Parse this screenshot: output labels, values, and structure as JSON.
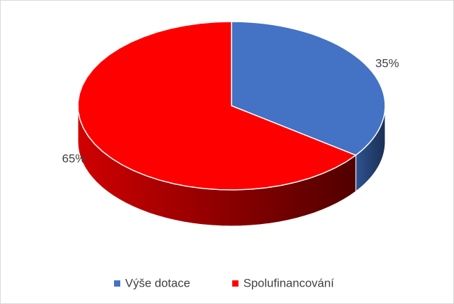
{
  "chart_data": {
    "type": "pie",
    "categories": [
      "Výše dotace",
      "Spolufinancování"
    ],
    "values": [
      35,
      65
    ],
    "value_labels": [
      "35%",
      "65%"
    ],
    "colors": [
      "#4472c4",
      "#ff0000"
    ],
    "legend": "bottom"
  }
}
